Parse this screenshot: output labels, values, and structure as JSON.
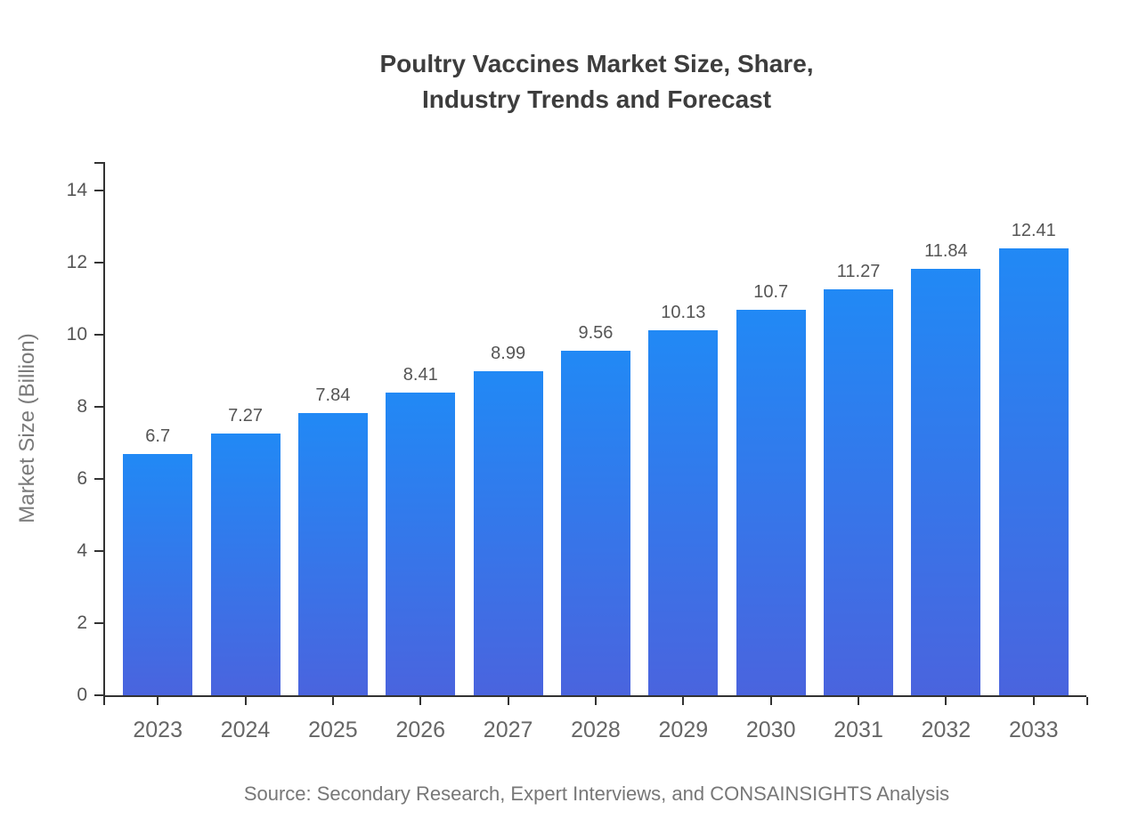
{
  "header": {
    "title_line1": "Poultry Vaccines Market Size, Share,",
    "title_line2": "Industry Trends and Forecast"
  },
  "chart_data": {
    "type": "bar",
    "title": "Poultry Vaccines Market Size, Share, Industry Trends and Forecast",
    "categories": [
      "2023",
      "2024",
      "2025",
      "2026",
      "2027",
      "2028",
      "2029",
      "2030",
      "2031",
      "2032",
      "2033"
    ],
    "values": [
      6.7,
      7.27,
      7.84,
      8.41,
      8.99,
      9.56,
      10.13,
      10.7,
      11.27,
      11.84,
      12.41
    ],
    "value_labels": [
      "6.7",
      "7.27",
      "7.84",
      "8.41",
      "8.99",
      "9.56",
      "10.13",
      "10.7",
      "11.27",
      "11.84",
      "12.41"
    ],
    "xlabel": "",
    "ylabel": "Market Size (Billion)",
    "ylim": [
      0,
      14.8
    ],
    "yticks": [
      0,
      2,
      4,
      6,
      8,
      10,
      12,
      14
    ],
    "grid": false,
    "legend": false,
    "bar_color_top": "#2189f5",
    "bar_color_bottom": "#4a64de",
    "axis_color": "#333333",
    "label_color": "#555555",
    "tick_label_color": "#666666"
  },
  "footer": {
    "source": "Source: Secondary Research, Expert Interviews, and CONSAINSIGHTS Analysis"
  }
}
